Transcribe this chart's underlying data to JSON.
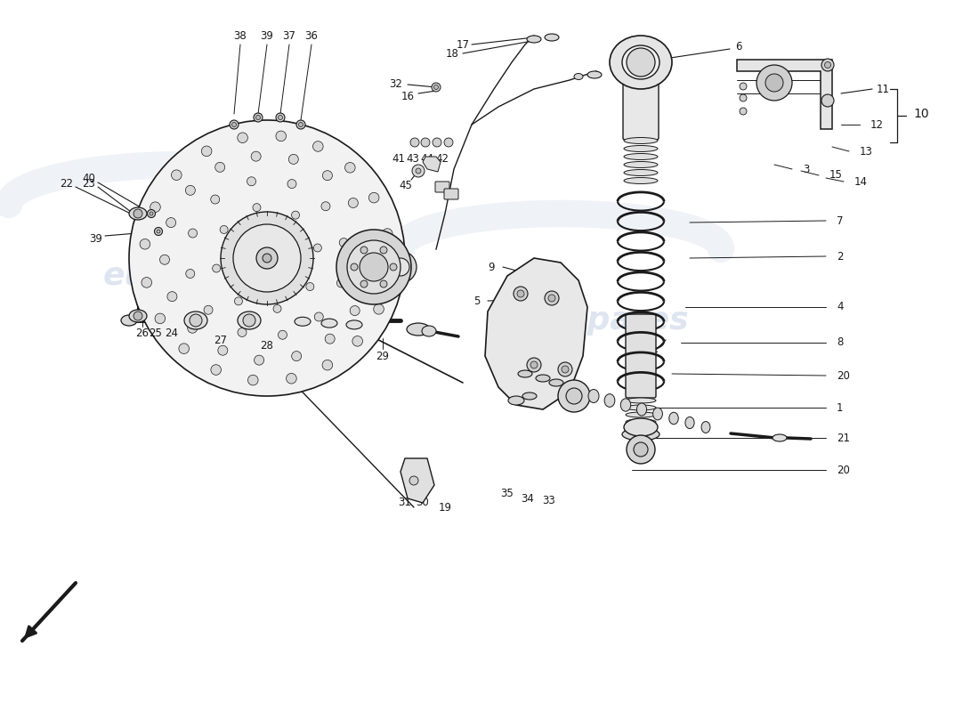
{
  "bg": "#ffffff",
  "lc": "#1a1a1a",
  "wc": "#c8d4e8",
  "fs": 8.5,
  "fig_w": 11.0,
  "fig_h": 8.0,
  "xlim": [
    0,
    1100
  ],
  "ylim": [
    0,
    800
  ]
}
